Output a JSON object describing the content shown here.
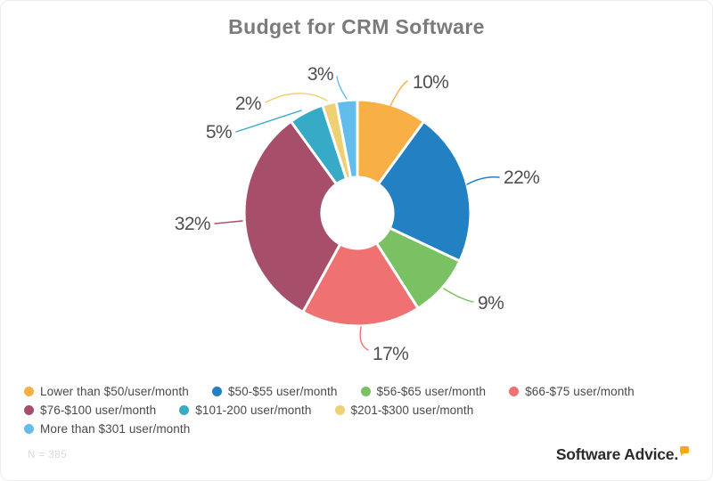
{
  "title": "Budget for CRM Software",
  "chart_data": {
    "type": "pie",
    "donut": true,
    "title": "Budget for CRM Software",
    "start_angle_deg": 0,
    "direction": "clockwise",
    "unit": "%",
    "categories": [
      "Lower than $50/user/month",
      "$50-$55 user/month",
      "$56-$65 user/month",
      "$66-$75 user/month",
      "$76-$100 user/month",
      "$101-200 user/month",
      "$201-$300 user/month",
      "More than $301 user/month"
    ],
    "values": [
      10,
      22,
      9,
      17,
      32,
      5,
      2,
      3
    ],
    "colors": [
      "#F8AF46",
      "#2280C3",
      "#79C163",
      "#EF7171",
      "#A74E6B",
      "#36AAC6",
      "#EFD173",
      "#62BDEC"
    ],
    "legend_position": "bottom",
    "sample_size_note": "N = 385"
  },
  "footer": {
    "n_label": "N = 385",
    "brand": "Software Advice."
  }
}
